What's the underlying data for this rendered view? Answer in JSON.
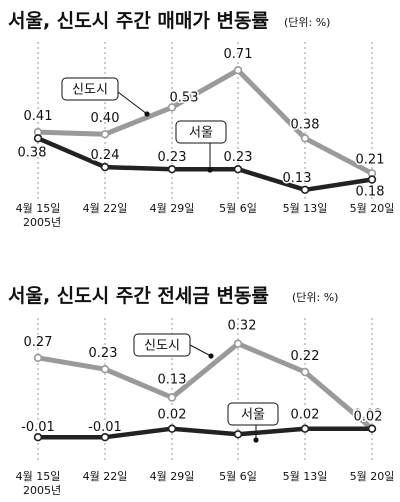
{
  "charts": [
    {
      "title": "서울, 신도시 주간 매매가 변동률",
      "unit": "(단위: %)",
      "tick_sub": "2005년",
      "chart_data": {
        "type": "line",
        "title": "서울, 신도시 주간 매매가 변동률",
        "unit": "(단위: %)",
        "categories": [
          "4월 15일",
          "4월 22일",
          "4월 29일",
          "5월 6일",
          "5월 13일",
          "5월 20일"
        ],
        "ylim": [
          0.1,
          0.75
        ],
        "grid": true,
        "series": [
          {
            "name": "신도시",
            "values": [
              0.41,
              0.4,
              0.53,
              0.71,
              0.38,
              0.21
            ],
            "labels": [
              "0.41",
              "0.40",
              "0.53",
              "0.71",
              "0.38",
              "0.21"
            ],
            "color": "#9a9a9a"
          },
          {
            "name": "서울",
            "values": [
              0.38,
              0.24,
              0.23,
              0.23,
              0.13,
              0.18
            ],
            "labels": [
              "0.38",
              "0.24",
              "0.23",
              "0.23",
              "0.13",
              "0.18"
            ],
            "color": "#222222"
          }
        ]
      }
    },
    {
      "title": "서울, 신도시 주간 전세금 변동률",
      "unit": "(단위: %)",
      "tick_sub": "2005년",
      "chart_data": {
        "type": "line",
        "title": "서울, 신도시 주간 전세금 변동률",
        "unit": "(단위: %)",
        "categories": [
          "4월 15일",
          "4월 22일",
          "4월 29일",
          "5월 6일",
          "5월 13일",
          "5월 20일"
        ],
        "ylim": [
          -0.02,
          0.34
        ],
        "grid": true,
        "series": [
          {
            "name": "신도시",
            "values": [
              0.27,
              0.23,
              0.13,
              0.32,
              0.22,
              0.02
            ],
            "labels": [
              "0.27",
              "0.23",
              "0.13",
              "0.32",
              "0.22",
              "0.02"
            ],
            "color": "#9a9a9a"
          },
          {
            "name": "서울",
            "values": [
              -0.01,
              -0.01,
              0.02,
              0,
              0.02,
              0.02
            ],
            "labels": [
              "-0.01",
              "-0.01",
              "0.02",
              "0",
              "0.02",
              "0.02"
            ],
            "color": "#222222"
          }
        ]
      }
    }
  ]
}
